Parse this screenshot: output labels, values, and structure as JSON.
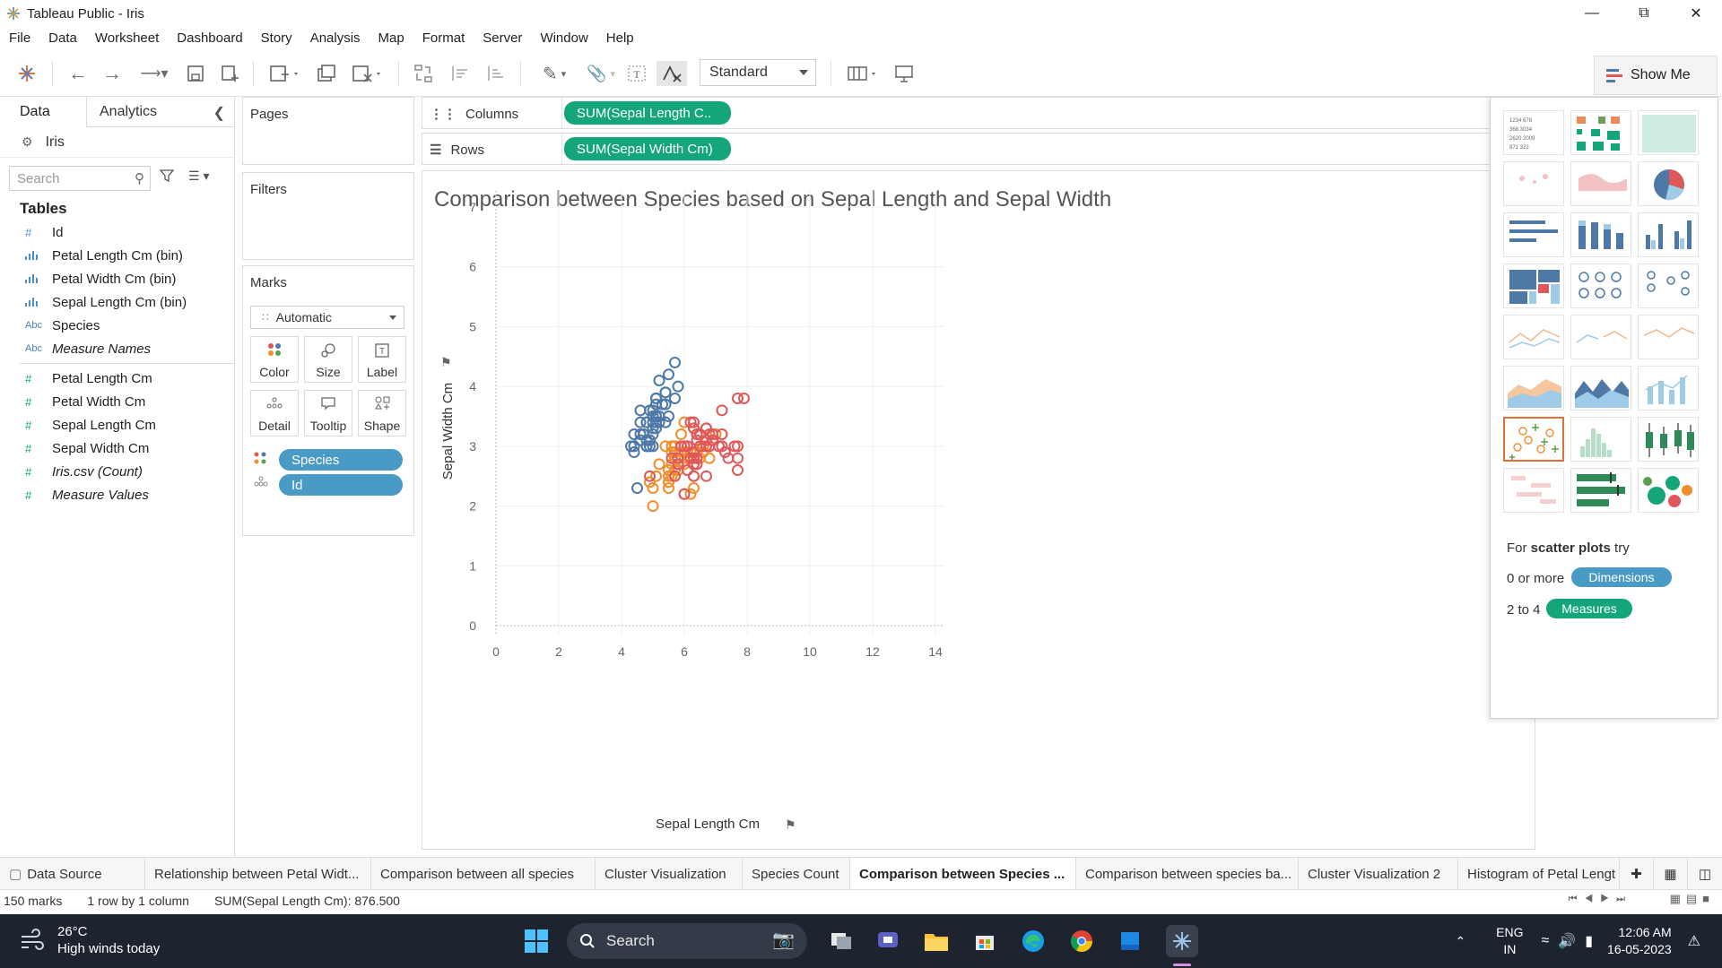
{
  "window": {
    "title": "Tableau Public - Iris"
  },
  "menu": [
    "File",
    "Data",
    "Worksheet",
    "Dashboard",
    "Story",
    "Analysis",
    "Map",
    "Format",
    "Server",
    "Window",
    "Help"
  ],
  "toolbar": {
    "fit_select": "Standard",
    "show_me_label": "Show Me"
  },
  "data_pane": {
    "tabs": [
      "Data",
      "Analytics"
    ],
    "datasource": "Iris",
    "search_placeholder": "Search",
    "tables_title": "Tables",
    "dimensions": [
      {
        "type": "#",
        "name": "Id",
        "kind": "dim"
      },
      {
        "type": "bin",
        "name": "Petal Length Cm (bin)",
        "kind": "dim"
      },
      {
        "type": "bin",
        "name": "Petal Width Cm (bin)",
        "kind": "dim"
      },
      {
        "type": "bin",
        "name": "Sepal Length Cm (bin)",
        "kind": "dim"
      },
      {
        "type": "Abc",
        "name": "Species",
        "kind": "abc"
      },
      {
        "type": "Abc",
        "name": "Measure Names",
        "kind": "abc",
        "italic": true
      }
    ],
    "measures": [
      {
        "type": "#",
        "name": "Petal Length Cm"
      },
      {
        "type": "#",
        "name": "Petal Width Cm"
      },
      {
        "type": "#",
        "name": "Sepal Length Cm"
      },
      {
        "type": "#",
        "name": "Sepal Width Cm"
      },
      {
        "type": "#",
        "name": "Iris.csv (Count)",
        "italic": true
      },
      {
        "type": "#",
        "name": "Measure Values",
        "italic": true
      }
    ]
  },
  "cards": {
    "pages": "Pages",
    "filters": "Filters",
    "marks": "Marks",
    "mark_type": "Automatic",
    "mark_buttons": [
      "Color",
      "Size",
      "Label",
      "Detail",
      "Tooltip",
      "Shape"
    ],
    "mark_pills": [
      "Species",
      "Id"
    ]
  },
  "shelves": {
    "columns_label": "Columns",
    "columns_pill": "SUM(Sepal Length C..",
    "rows_label": "Rows",
    "rows_pill": "SUM(Sepal Width Cm)"
  },
  "viz": {
    "title": "Comparison between Species based on Sepal Length and Sepal Width"
  },
  "chart_data": {
    "type": "scatter",
    "title": "Comparison between Species based on Sepal Length and Sepal Width",
    "xlabel": "Sepal Length Cm",
    "ylabel": "Sepal Width Cm",
    "xlim": [
      0,
      14
    ],
    "ylim": [
      0,
      7
    ],
    "xticks": [
      0,
      2,
      4,
      6,
      8,
      10,
      12,
      14
    ],
    "yticks": [
      0,
      1,
      2,
      3,
      4,
      5,
      6,
      7
    ],
    "marker": "open-circle",
    "colors": {
      "Iris-setosa": "#4e79a7",
      "Iris-versicolor": "#f28e2b",
      "Iris-virginica": "#e15759"
    },
    "series": [
      {
        "color_key": "Iris-setosa",
        "points": [
          [
            5.1,
            3.5
          ],
          [
            4.9,
            3.0
          ],
          [
            4.7,
            3.2
          ],
          [
            4.6,
            3.1
          ],
          [
            5.0,
            3.6
          ],
          [
            5.4,
            3.9
          ],
          [
            4.6,
            3.4
          ],
          [
            5.0,
            3.4
          ],
          [
            4.4,
            2.9
          ],
          [
            4.9,
            3.1
          ],
          [
            5.4,
            3.7
          ],
          [
            4.8,
            3.4
          ],
          [
            4.8,
            3.0
          ],
          [
            4.3,
            3.0
          ],
          [
            5.8,
            4.0
          ],
          [
            5.7,
            4.4
          ],
          [
            5.4,
            3.9
          ],
          [
            5.1,
            3.5
          ],
          [
            5.7,
            3.8
          ],
          [
            5.1,
            3.8
          ],
          [
            5.4,
            3.4
          ],
          [
            5.1,
            3.7
          ],
          [
            4.6,
            3.6
          ],
          [
            5.1,
            3.3
          ],
          [
            4.8,
            3.4
          ],
          [
            5.0,
            3.0
          ],
          [
            5.0,
            3.4
          ],
          [
            5.2,
            3.5
          ],
          [
            5.2,
            3.4
          ],
          [
            4.7,
            3.2
          ],
          [
            4.8,
            3.1
          ],
          [
            5.4,
            3.4
          ],
          [
            5.2,
            4.1
          ],
          [
            5.5,
            4.2
          ],
          [
            4.9,
            3.1
          ],
          [
            5.0,
            3.2
          ],
          [
            5.5,
            3.5
          ],
          [
            4.9,
            3.6
          ],
          [
            4.4,
            3.0
          ],
          [
            5.1,
            3.4
          ],
          [
            5.0,
            3.5
          ],
          [
            4.5,
            2.3
          ],
          [
            4.4,
            3.2
          ],
          [
            5.0,
            3.5
          ],
          [
            5.1,
            3.8
          ],
          [
            4.8,
            3.0
          ],
          [
            5.1,
            3.8
          ],
          [
            4.6,
            3.2
          ],
          [
            5.3,
            3.7
          ],
          [
            5.0,
            3.3
          ]
        ]
      },
      {
        "color_key": "Iris-versicolor",
        "points": [
          [
            7.0,
            3.2
          ],
          [
            6.4,
            3.2
          ],
          [
            6.9,
            3.1
          ],
          [
            5.5,
            2.3
          ],
          [
            6.5,
            2.8
          ],
          [
            5.7,
            2.8
          ],
          [
            6.3,
            3.3
          ],
          [
            4.9,
            2.4
          ],
          [
            6.6,
            2.9
          ],
          [
            5.2,
            2.7
          ],
          [
            5.0,
            2.0
          ],
          [
            5.9,
            3.0
          ],
          [
            6.0,
            2.2
          ],
          [
            6.1,
            2.9
          ],
          [
            5.6,
            2.9
          ],
          [
            6.7,
            3.1
          ],
          [
            5.6,
            3.0
          ],
          [
            5.8,
            2.7
          ],
          [
            6.2,
            2.2
          ],
          [
            5.6,
            2.5
          ],
          [
            5.9,
            3.2
          ],
          [
            6.1,
            2.8
          ],
          [
            6.3,
            2.5
          ],
          [
            6.1,
            2.8
          ],
          [
            6.4,
            2.9
          ],
          [
            6.6,
            3.0
          ],
          [
            6.8,
            2.8
          ],
          [
            6.7,
            3.0
          ],
          [
            6.0,
            2.9
          ],
          [
            5.7,
            2.6
          ],
          [
            5.5,
            2.4
          ],
          [
            5.5,
            2.4
          ],
          [
            5.8,
            2.7
          ],
          [
            6.0,
            2.7
          ],
          [
            5.4,
            3.0
          ],
          [
            6.0,
            3.4
          ],
          [
            6.7,
            3.1
          ],
          [
            6.3,
            2.3
          ],
          [
            5.6,
            3.0
          ],
          [
            5.5,
            2.5
          ],
          [
            5.5,
            2.6
          ],
          [
            6.1,
            3.0
          ],
          [
            5.8,
            2.6
          ],
          [
            5.0,
            2.3
          ],
          [
            5.6,
            2.7
          ],
          [
            5.7,
            3.0
          ],
          [
            5.7,
            2.9
          ],
          [
            6.2,
            2.9
          ],
          [
            5.1,
            2.5
          ],
          [
            5.7,
            2.8
          ]
        ]
      },
      {
        "color_key": "Iris-virginica",
        "points": [
          [
            6.3,
            3.3
          ],
          [
            5.8,
            2.7
          ],
          [
            7.1,
            3.0
          ],
          [
            6.3,
            2.9
          ],
          [
            6.5,
            3.0
          ],
          [
            7.6,
            3.0
          ],
          [
            4.9,
            2.5
          ],
          [
            7.3,
            2.9
          ],
          [
            6.7,
            2.5
          ],
          [
            7.2,
            3.6
          ],
          [
            6.5,
            3.2
          ],
          [
            6.4,
            2.7
          ],
          [
            6.8,
            3.0
          ],
          [
            5.7,
            2.5
          ],
          [
            5.8,
            2.8
          ],
          [
            6.4,
            3.2
          ],
          [
            6.5,
            3.0
          ],
          [
            7.7,
            3.8
          ],
          [
            7.7,
            2.6
          ],
          [
            6.0,
            2.2
          ],
          [
            6.9,
            3.2
          ],
          [
            5.6,
            2.8
          ],
          [
            7.7,
            2.8
          ],
          [
            6.3,
            2.7
          ],
          [
            6.7,
            3.3
          ],
          [
            7.2,
            3.2
          ],
          [
            6.2,
            2.8
          ],
          [
            6.1,
            3.0
          ],
          [
            6.4,
            2.8
          ],
          [
            7.2,
            3.0
          ],
          [
            7.4,
            2.8
          ],
          [
            7.9,
            3.8
          ],
          [
            6.4,
            2.8
          ],
          [
            6.3,
            2.8
          ],
          [
            6.1,
            2.6
          ],
          [
            7.7,
            3.0
          ],
          [
            6.3,
            3.4
          ],
          [
            6.4,
            3.1
          ],
          [
            6.0,
            3.0
          ],
          [
            6.9,
            3.1
          ],
          [
            6.7,
            3.1
          ],
          [
            6.9,
            3.1
          ],
          [
            5.8,
            2.7
          ],
          [
            6.8,
            3.2
          ],
          [
            6.7,
            3.3
          ],
          [
            6.7,
            3.0
          ],
          [
            6.3,
            2.5
          ],
          [
            6.5,
            3.0
          ],
          [
            6.2,
            3.4
          ],
          [
            5.9,
            3.0
          ]
        ]
      }
    ]
  },
  "show_me": {
    "hint_prefix": "For",
    "hint_bold": "scatter plots",
    "hint_suffix": "try",
    "dims_prefix": "0 or more",
    "dims_label": "Dimensions",
    "meas_prefix": "2 to 4",
    "meas_label": "Measures"
  },
  "sheet_tabs": [
    "Data Source",
    "Relationship between Petal Widt...",
    "Comparison between all species",
    "Cluster Visualization",
    "Species Count",
    "Comparison between Species ...",
    "Comparison between species ba...",
    "Cluster Visualization 2",
    "Histogram of Petal Lengt"
  ],
  "active_tab_index": 5,
  "status": {
    "marks": "150 marks",
    "layout": "1 row by 1 column",
    "sum": "SUM(Sepal Length Cm): 876.500"
  },
  "taskbar": {
    "temp": "26°C",
    "weather": "High winds today",
    "search": "Search",
    "lang1": "ENG",
    "lang2": "IN",
    "time": "12:06 AM",
    "date": "16-05-2023"
  }
}
